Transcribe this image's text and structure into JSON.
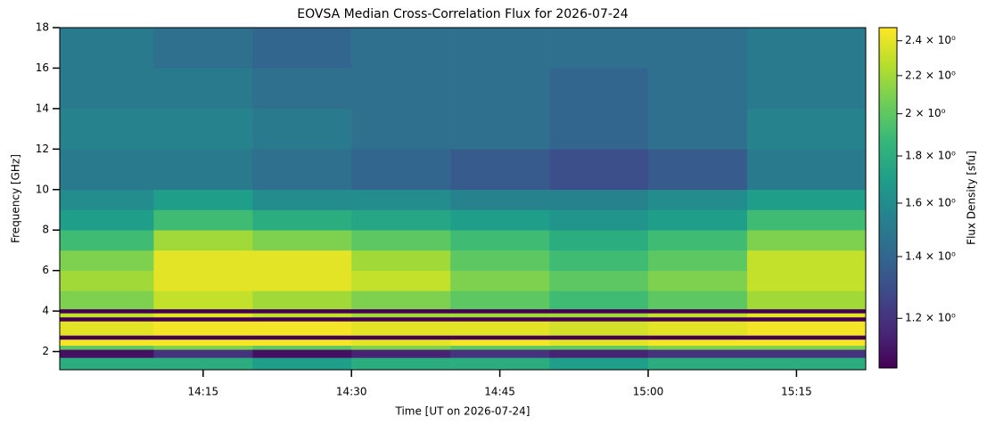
{
  "chart_data": {
    "type": "heatmap",
    "title": "EOVSA Median Cross-Correlation Flux for 2026-07-24",
    "x_label": "Time [UT on 2026-07-24]",
    "y_label": "Frequency [GHz]",
    "colorbar_label": "Flux Density [sfu]",
    "colormap": "viridis",
    "zscale": "log",
    "xlim": [
      840.5,
      922
    ],
    "xticks": [
      {
        "value": 855,
        "label": "14:15"
      },
      {
        "value": 870,
        "label": "14:30"
      },
      {
        "value": 885,
        "label": "14:45"
      },
      {
        "value": 900,
        "label": "15:00"
      },
      {
        "value": 915,
        "label": "15:15"
      }
    ],
    "ylim": [
      1.1,
      18
    ],
    "yticks": [
      2,
      4,
      6,
      8,
      10,
      12,
      14,
      16,
      18
    ],
    "zlim": [
      1.06,
      2.48
    ],
    "zticks": [
      {
        "value": 1.2,
        "label": "1.2 × 10⁰"
      },
      {
        "value": 1.4,
        "label": "1.4 × 10⁰"
      },
      {
        "value": 1.6,
        "label": "1.6 × 10⁰"
      },
      {
        "value": 1.8,
        "label": "1.8 × 10⁰"
      },
      {
        "value": 2,
        "label": "2 × 10⁰"
      },
      {
        "value": 2.2,
        "label": "2.2 × 10⁰"
      },
      {
        "value": 2.4,
        "label": "2.4 × 10⁰"
      }
    ],
    "x_edges": [
      840.5,
      850,
      860,
      870,
      880,
      890,
      900,
      910,
      922
    ],
    "y_edges": [
      1.1,
      1.7,
      2.1,
      2.3,
      2.6,
      2.8,
      3.5,
      3.7,
      3.9,
      4.1,
      5,
      6,
      7,
      8,
      9,
      10,
      12,
      14,
      16,
      18
    ],
    "z": [
      [
        1.8,
        1.8,
        1.7,
        1.8,
        1.8,
        1.7,
        1.8,
        1.8
      ],
      [
        1.1,
        1.2,
        1.1,
        1.15,
        1.2,
        1.15,
        1.2,
        1.2
      ],
      [
        2.0,
        2.1,
        2.0,
        2.1,
        2.0,
        2.0,
        2.1,
        2.1
      ],
      [
        2.45,
        2.45,
        2.45,
        2.4,
        2.45,
        2.4,
        2.45,
        2.45
      ],
      [
        1.06,
        1.06,
        1.06,
        1.06,
        1.06,
        1.06,
        1.06,
        1.06
      ],
      [
        2.4,
        2.45,
        2.45,
        2.4,
        2.4,
        2.35,
        2.4,
        2.45
      ],
      [
        1.06,
        1.06,
        1.06,
        1.06,
        1.06,
        1.06,
        1.06,
        1.06
      ],
      [
        2.3,
        2.4,
        2.3,
        2.2,
        2.2,
        2.2,
        2.3,
        2.4
      ],
      [
        1.06,
        1.06,
        1.06,
        1.06,
        1.06,
        1.06,
        1.06,
        1.06
      ],
      [
        2.1,
        2.3,
        2.2,
        2.1,
        2.0,
        1.9,
        2.0,
        2.2
      ],
      [
        2.2,
        2.4,
        2.4,
        2.3,
        2.1,
        2.0,
        2.1,
        2.3
      ],
      [
        2.1,
        2.4,
        2.4,
        2.2,
        2.0,
        1.9,
        2.0,
        2.3
      ],
      [
        1.9,
        2.2,
        2.1,
        2.0,
        1.9,
        1.8,
        1.9,
        2.1
      ],
      [
        1.7,
        1.9,
        1.8,
        1.75,
        1.7,
        1.65,
        1.7,
        1.9
      ],
      [
        1.6,
        1.7,
        1.6,
        1.6,
        1.55,
        1.55,
        1.6,
        1.7
      ],
      [
        1.5,
        1.5,
        1.45,
        1.4,
        1.35,
        1.3,
        1.35,
        1.5
      ],
      [
        1.55,
        1.55,
        1.5,
        1.45,
        1.45,
        1.4,
        1.45,
        1.55
      ],
      [
        1.5,
        1.5,
        1.45,
        1.45,
        1.45,
        1.4,
        1.45,
        1.5
      ],
      [
        1.5,
        1.45,
        1.4,
        1.45,
        1.45,
        1.45,
        1.45,
        1.5
      ]
    ]
  }
}
